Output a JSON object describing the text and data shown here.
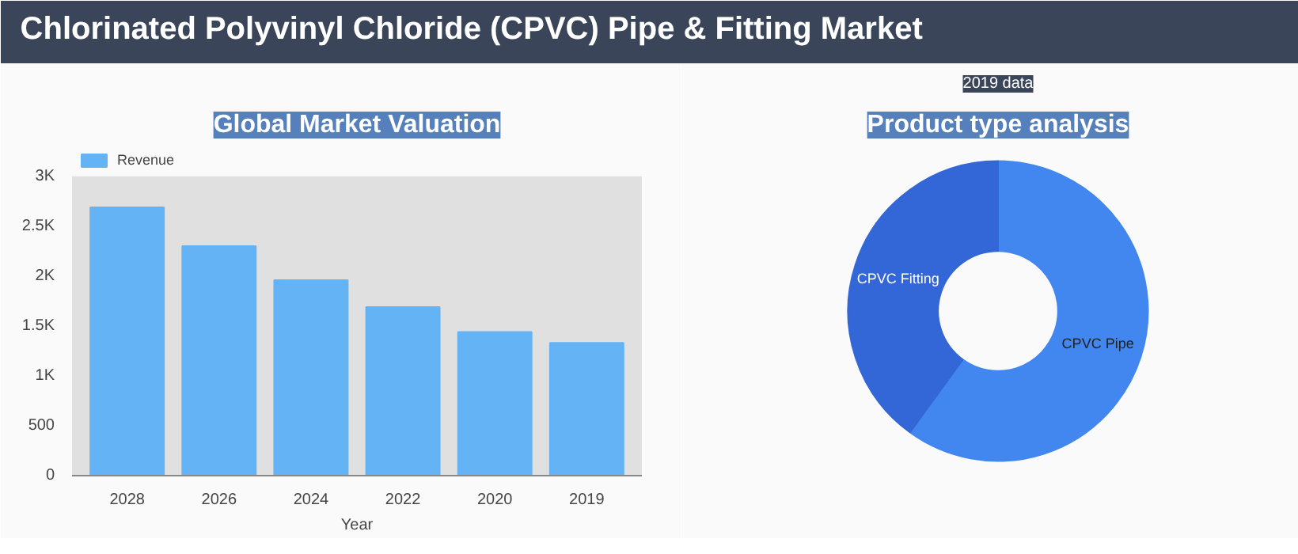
{
  "chart_data": [
    {
      "type": "other",
      "title": "Chlorinated Polyvinyl Chloride (CPVC) Pipe & Fitting Market"
    },
    {
      "type": "bar",
      "title": "Global Market Valuation",
      "xlabel": "Year",
      "categories": [
        "2028",
        "2026",
        "2024",
        "2022",
        "2020",
        "2019"
      ],
      "series": [
        {
          "name": "Revenue",
          "color": "#63b3f5",
          "values": [
            2690,
            2300,
            1960,
            1690,
            1440,
            1330
          ]
        }
      ],
      "ylim": [
        0,
        3000
      ],
      "yticks": [
        0,
        {
          "value": 500,
          "label": "500"
        },
        {
          "value": 1000,
          "label": "1K"
        },
        {
          "value": 1500,
          "label": "1.5K"
        },
        {
          "value": 2000,
          "label": "2K"
        },
        {
          "value": 2500,
          "label": "2.5K"
        },
        {
          "value": 3000,
          "label": "3K"
        }
      ],
      "grid": false,
      "legend": "top left"
    },
    {
      "type": "donut",
      "title": "Product type analysis",
      "subtitle": "2019 data",
      "categories": [
        "CPVC Pipe",
        "CPVC Fitting"
      ],
      "values": [
        60,
        40
      ],
      "colors": [
        "#4287f0",
        "#3366d6"
      ]
    }
  ]
}
